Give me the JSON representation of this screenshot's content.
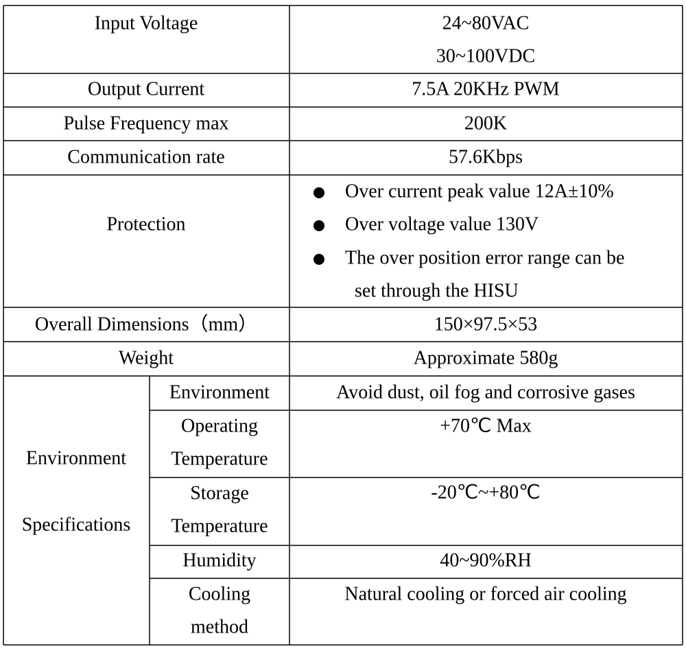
{
  "table": {
    "rows": [
      {
        "label": "Input Voltage",
        "value": [
          "24~80VAC",
          "30~100VDC"
        ]
      },
      {
        "label": "Output Current",
        "value": [
          "7.5A 20KHz PWM"
        ]
      },
      {
        "label": "Pulse Frequency max",
        "value": [
          "200K"
        ]
      },
      {
        "label": "Communication rate",
        "value": [
          "57.6Kbps"
        ]
      },
      {
        "label": "Protection",
        "bullets": [
          [
            "Over current peak value 12A±10%"
          ],
          [
            "Over voltage value 130V"
          ],
          [
            "The over position error range can be",
            "set through the HISU"
          ]
        ]
      },
      {
        "label": "Overall Dimensions（mm）",
        "value": [
          "150×97.5×53"
        ]
      },
      {
        "label": "Weight",
        "value": [
          "Approximate 580g"
        ]
      }
    ],
    "environment": {
      "label": [
        "Environment",
        "Specifications"
      ],
      "items": [
        {
          "name": [
            "Environment"
          ],
          "value": "Avoid dust, oil fog and corrosive gases"
        },
        {
          "name": [
            "Operating",
            "Temperature"
          ],
          "value": "+70℃ Max"
        },
        {
          "name": [
            "Storage",
            "Temperature"
          ],
          "value": "-20℃~+80℃"
        },
        {
          "name": [
            "Humidity"
          ],
          "value": "40~90%RH"
        },
        {
          "name": [
            "Cooling",
            "method"
          ],
          "value": "Natural cooling or forced air cooling"
        }
      ]
    }
  }
}
